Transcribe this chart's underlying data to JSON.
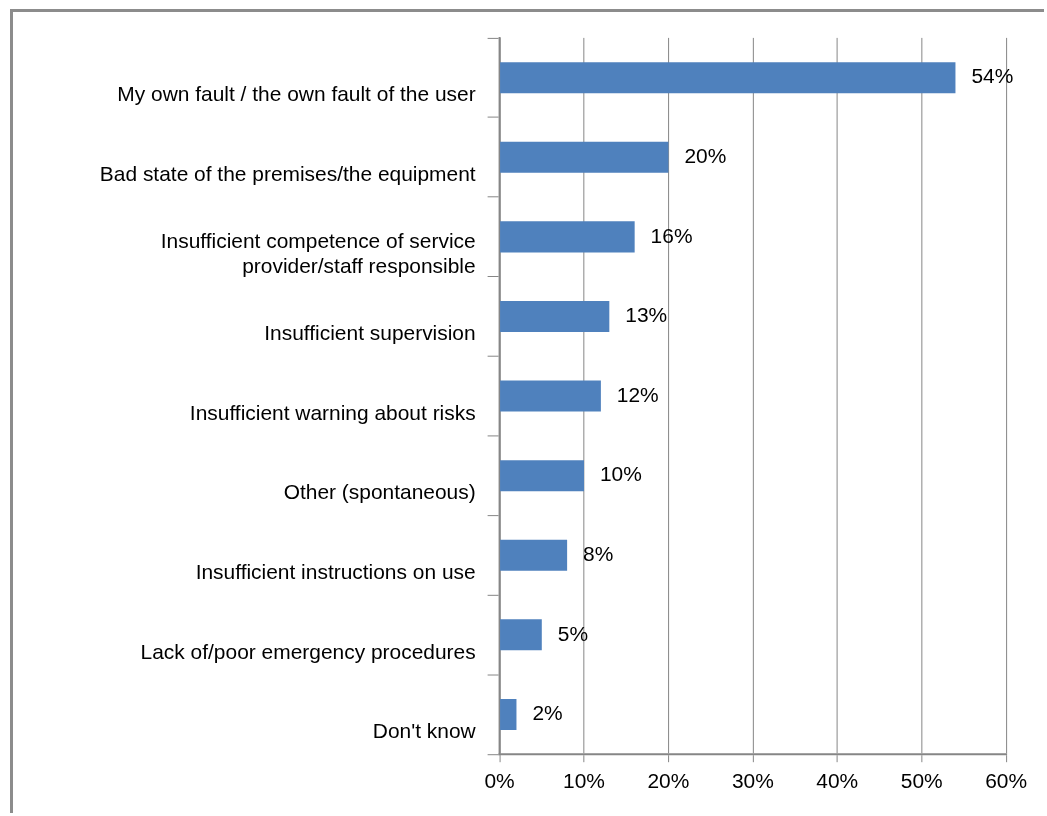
{
  "chart_data": {
    "type": "bar",
    "orientation": "horizontal",
    "categories": [
      "My own fault / the own fault of the user",
      "Bad state of the premises/the equipment",
      "Insufficient competence of service provider/staff responsible",
      "Insufficient supervision",
      "Insufficient warning about risks",
      "Other (spontaneous)",
      "Insufficient instructions on use",
      "Lack of/poor emergency procedures",
      "Don't know"
    ],
    "values": [
      54,
      20,
      16,
      13,
      12,
      10,
      8,
      5,
      2
    ],
    "color": "#4f81bd",
    "value_labels": [
      "54%",
      "20%",
      "16%",
      "13%",
      "12%",
      "10%",
      "8%",
      "5%",
      "2%"
    ],
    "xlim": [
      0,
      60
    ],
    "xticks": [
      {
        "value": 0,
        "label": "0%"
      },
      {
        "value": 10,
        "label": "10%"
      },
      {
        "value": 20,
        "label": "20%"
      },
      {
        "value": 30,
        "label": "30%"
      },
      {
        "value": 40,
        "label": "40%"
      },
      {
        "value": 50,
        "label": "50%"
      },
      {
        "value": 60,
        "label": "60%"
      }
    ],
    "grid": "x"
  }
}
